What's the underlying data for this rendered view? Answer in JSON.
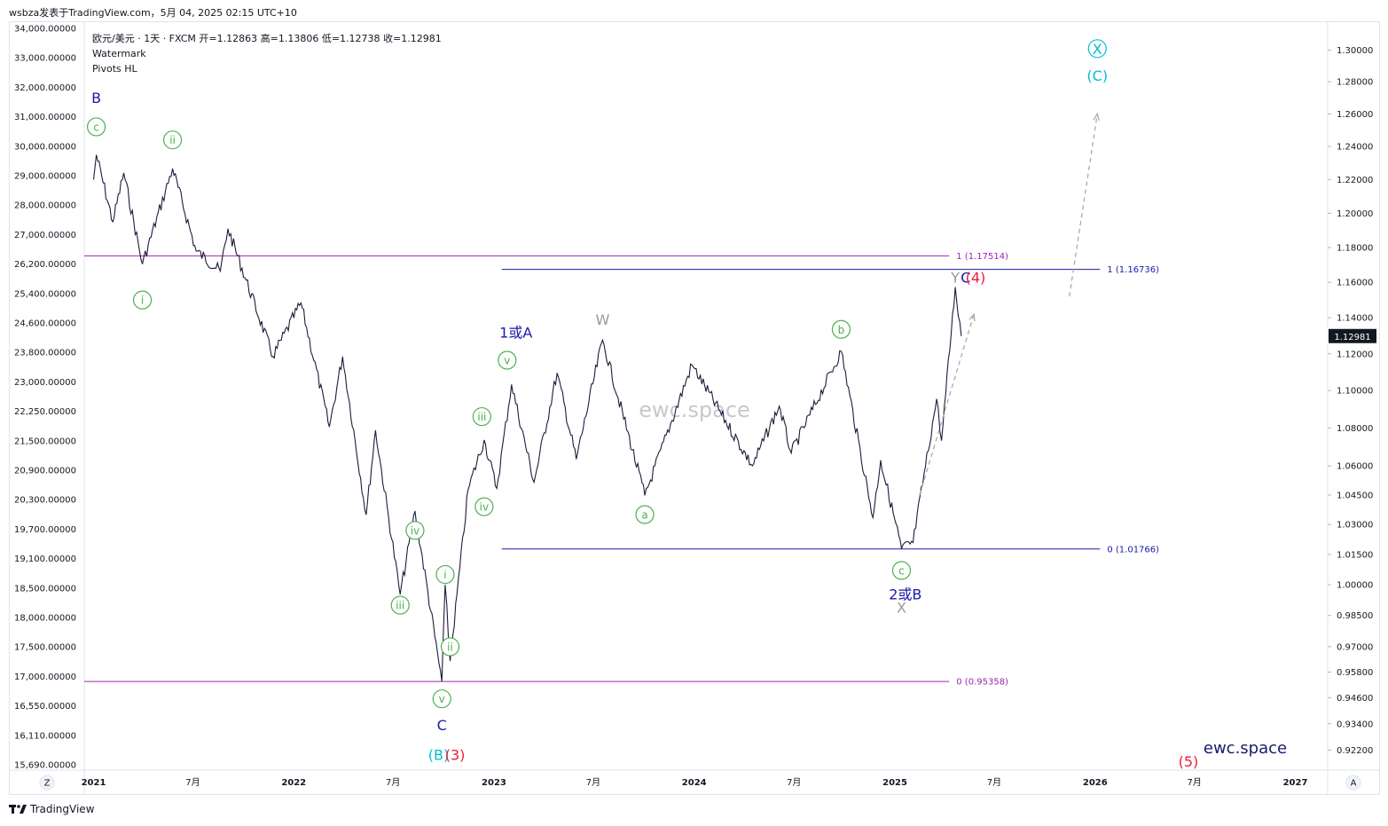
{
  "header": {
    "author_line": "wsbza发表于TradingView.com，5月 04, 2025 02:15 UTC+10"
  },
  "legend": {
    "symbol_line": "欧元/美元 · 1天 · FXCM  开=1.12863  高=1.13806  低=1.12738  收=1.12981",
    "indicators": [
      "Watermark",
      "Pivots HL"
    ]
  },
  "watermark": {
    "center_text": "ewc.space",
    "corner_text": "ewc.space"
  },
  "footer": {
    "brand": "TradingView"
  },
  "scale_buttons": {
    "left": "Z",
    "right": "A"
  },
  "chart_data": {
    "type": "line",
    "title": "欧元/美元 · 1天 · FXCM",
    "series_color": "#1e1b3a",
    "x_axis": {
      "ticks": [
        "2021",
        "7月",
        "2022",
        "7月",
        "2023",
        "7月",
        "2024",
        "7月",
        "2025",
        "7月",
        "2026",
        "7月",
        "2027"
      ],
      "bold_ticks": [
        "2021",
        "2022",
        "2023",
        "2024",
        "2025",
        "2026",
        "2027"
      ],
      "range": [
        "2020-12-15",
        "2027-03-01"
      ]
    },
    "y_axis_right": {
      "ticks": [
        "1.30000",
        "1.28000",
        "1.26000",
        "1.24000",
        "1.22000",
        "1.20000",
        "1.18000",
        "1.16000",
        "1.14000",
        "1.12000",
        "1.10000",
        "1.08000",
        "1.06000",
        "1.04500",
        "1.03000",
        "1.01500",
        "1.00000",
        "0.98500",
        "0.97000",
        "0.95800",
        "0.94600",
        "0.93400",
        "0.92200"
      ],
      "scale": "log",
      "last_price": "1.12981",
      "last_price_color": "#131722"
    },
    "y_axis_left": {
      "ticks": [
        "34,000.00000",
        "33,000.00000",
        "32,000.00000",
        "31,000.00000",
        "30,000.00000",
        "29,000.00000",
        "28,000.00000",
        "27,000.00000",
        "26,200.00000",
        "25,400.00000",
        "24,600.00000",
        "23,800.00000",
        "23,000.00000",
        "22,250.00000",
        "21,500.00000",
        "20,900.00000",
        "20,300.00000",
        "19,700.00000",
        "19,100.00000",
        "18,500.00000",
        "18,000.00000",
        "17,500.00000",
        "17,000.00000",
        "16,550.00000",
        "16,110.00000",
        "15,690.00000"
      ]
    },
    "price_path": [
      {
        "x": "2021-01-01",
        "y": 1.22
      },
      {
        "x": "2021-01-06",
        "y": 1.2349
      },
      {
        "x": "2021-02-05",
        "y": 1.195
      },
      {
        "x": "2021-02-25",
        "y": 1.224
      },
      {
        "x": "2021-03-31",
        "y": 1.1704
      },
      {
        "x": "2021-05-25",
        "y": 1.2266
      },
      {
        "x": "2021-07-07",
        "y": 1.178
      },
      {
        "x": "2021-08-20",
        "y": 1.1664
      },
      {
        "x": "2021-09-03",
        "y": 1.1909
      },
      {
        "x": "2021-11-24",
        "y": 1.1186
      },
      {
        "x": "2022-01-14",
        "y": 1.1483
      },
      {
        "x": "2022-03-07",
        "y": 1.0805
      },
      {
        "x": "2022-03-31",
        "y": 1.1185
      },
      {
        "x": "2022-05-13",
        "y": 1.0349
      },
      {
        "x": "2022-05-30",
        "y": 1.0787
      },
      {
        "x": "2022-07-14",
        "y": 0.9952
      },
      {
        "x": "2022-08-10",
        "y": 1.0368
      },
      {
        "x": "2022-09-28",
        "y": 0.9536
      },
      {
        "x": "2022-10-04",
        "y": 0.9999
      },
      {
        "x": "2022-10-13",
        "y": 0.9632
      },
      {
        "x": "2022-11-15",
        "y": 1.048
      },
      {
        "x": "2022-12-14",
        "y": 1.0736
      },
      {
        "x": "2023-01-06",
        "y": 1.0484
      },
      {
        "x": "2023-02-02",
        "y": 1.1033
      },
      {
        "x": "2023-03-15",
        "y": 1.0516
      },
      {
        "x": "2023-04-26",
        "y": 1.1095
      },
      {
        "x": "2023-05-31",
        "y": 1.0635
      },
      {
        "x": "2023-07-18",
        "y": 1.1276
      },
      {
        "x": "2023-10-03",
        "y": 1.0448
      },
      {
        "x": "2023-12-28",
        "y": 1.1139
      },
      {
        "x": "2024-04-16",
        "y": 1.0601
      },
      {
        "x": "2024-06-04",
        "y": 1.0916
      },
      {
        "x": "2024-06-26",
        "y": 1.0667
      },
      {
        "x": "2024-09-25",
        "y": 1.1214
      },
      {
        "x": "2024-11-22",
        "y": 1.0335
      },
      {
        "x": "2024-12-06",
        "y": 1.063
      },
      {
        "x": "2025-01-13",
        "y": 1.0178
      },
      {
        "x": "2025-02-03",
        "y": 1.0209
      },
      {
        "x": "2025-03-18",
        "y": 1.0955
      },
      {
        "x": "2025-03-27",
        "y": 1.0733
      },
      {
        "x": "2025-04-21",
        "y": 1.1573
      },
      {
        "x": "2025-05-02",
        "y": 1.1298
      }
    ],
    "horizontal_levels": [
      {
        "label": "1 (1.17514)",
        "y": 1.17514,
        "color": "#9c27b0",
        "from": "2020-12-15",
        "to": "2025-04-10"
      },
      {
        "label": "0 (0.95358)",
        "y": 0.95358,
        "color": "#9c27b0",
        "from": "2020-12-15",
        "to": "2025-04-10"
      },
      {
        "label": "1 (1.16736)",
        "y": 1.16736,
        "color": "#1a1aaa",
        "from": "2023-01-15",
        "to": "2026-01-10"
      },
      {
        "label": "0 (1.01766)",
        "y": 1.01766,
        "color": "#1a1aaa",
        "from": "2023-01-15",
        "to": "2026-01-10"
      }
    ],
    "projection_lines": [
      {
        "points": [
          {
            "x": "2025-02-15",
            "y": 1.045
          },
          {
            "x": "2025-05-25",
            "y": 1.142
          }
        ],
        "color": "#aaaaaa"
      },
      {
        "points": [
          {
            "x": "2025-11-15",
            "y": 1.152
          },
          {
            "x": "2026-01-05",
            "y": 1.26
          }
        ],
        "color": "#aaaaaa"
      }
    ],
    "wave_labels": [
      {
        "text": "B",
        "x": "2021-01-06",
        "y": 1.27,
        "color": "#1a1aaa",
        "circle": false
      },
      {
        "text": "c",
        "x": "2021-01-06",
        "y": 1.252,
        "color": "#4caf50",
        "circle": true
      },
      {
        "text": "ii",
        "x": "2021-05-25",
        "y": 1.244,
        "color": "#4caf50",
        "circle": true
      },
      {
        "text": "i",
        "x": "2021-03-31",
        "y": 1.15,
        "color": "#4caf50",
        "circle": true
      },
      {
        "text": "iii",
        "x": "2022-07-14",
        "y": 0.99,
        "color": "#4caf50",
        "circle": true
      },
      {
        "text": "iv",
        "x": "2022-08-10",
        "y": 1.027,
        "color": "#4caf50",
        "circle": true
      },
      {
        "text": "i",
        "x": "2022-10-04",
        "y": 1.005,
        "color": "#4caf50",
        "circle": true
      },
      {
        "text": "ii",
        "x": "2022-10-13",
        "y": 0.97,
        "color": "#4caf50",
        "circle": true
      },
      {
        "text": "v",
        "x": "2022-09-28",
        "y": 0.9455,
        "color": "#4caf50",
        "circle": true
      },
      {
        "text": "C",
        "x": "2022-09-28",
        "y": 0.9335,
        "color": "#1a1aaa",
        "circle": false
      },
      {
        "text": "(B)",
        "x": "2022-09-22",
        "y": 0.92,
        "color": "#00bcd4",
        "circle": false
      },
      {
        "text": "(3)",
        "x": "2022-10-22",
        "y": 0.92,
        "color": "#e91e3c",
        "circle": false
      },
      {
        "text": "iii",
        "x": "2022-12-10",
        "y": 1.086,
        "color": "#4caf50",
        "circle": true
      },
      {
        "text": "iv",
        "x": "2022-12-14",
        "y": 1.039,
        "color": "#4caf50",
        "circle": true
      },
      {
        "text": "v",
        "x": "2023-01-25",
        "y": 1.1165,
        "color": "#4caf50",
        "circle": true
      },
      {
        "text": "1或A",
        "x": "2023-02-10",
        "y": 1.132,
        "color": "#1a1aaa",
        "circle": false
      },
      {
        "text": "W",
        "x": "2023-07-18",
        "y": 1.139,
        "color": "#999999",
        "circle": false
      },
      {
        "text": "a",
        "x": "2023-10-03",
        "y": 1.035,
        "color": "#4caf50",
        "circle": true
      },
      {
        "text": "b",
        "x": "2024-09-25",
        "y": 1.1335,
        "color": "#4caf50",
        "circle": true
      },
      {
        "text": "c",
        "x": "2025-01-13",
        "y": 1.007,
        "color": "#4caf50",
        "circle": true
      },
      {
        "text": "2或B",
        "x": "2025-01-20",
        "y": 0.9955,
        "color": "#1a1aaa",
        "circle": false
      },
      {
        "text": "X",
        "x": "2025-01-13",
        "y": 0.989,
        "color": "#999999",
        "circle": false
      },
      {
        "text": "Y",
        "x": "2025-04-21",
        "y": 1.163,
        "color": "#999999",
        "circle": false
      },
      {
        "text": "C",
        "x": "2025-05-10",
        "y": 1.163,
        "color": "#1a1aaa",
        "circle": false
      },
      {
        "text": "(4)",
        "x": "2025-05-28",
        "y": 1.163,
        "color": "#e91e3c",
        "circle": false
      },
      {
        "text": "X",
        "x": "2026-01-05",
        "y": 1.301,
        "color": "#00bcd4",
        "circle": true
      },
      {
        "text": "(C)",
        "x": "2026-01-05",
        "y": 1.284,
        "color": "#00bcd4",
        "circle": false
      },
      {
        "text": "(5)",
        "x": "2026-06-20",
        "y": 0.917,
        "color": "#e91e3c",
        "circle": false
      }
    ]
  }
}
